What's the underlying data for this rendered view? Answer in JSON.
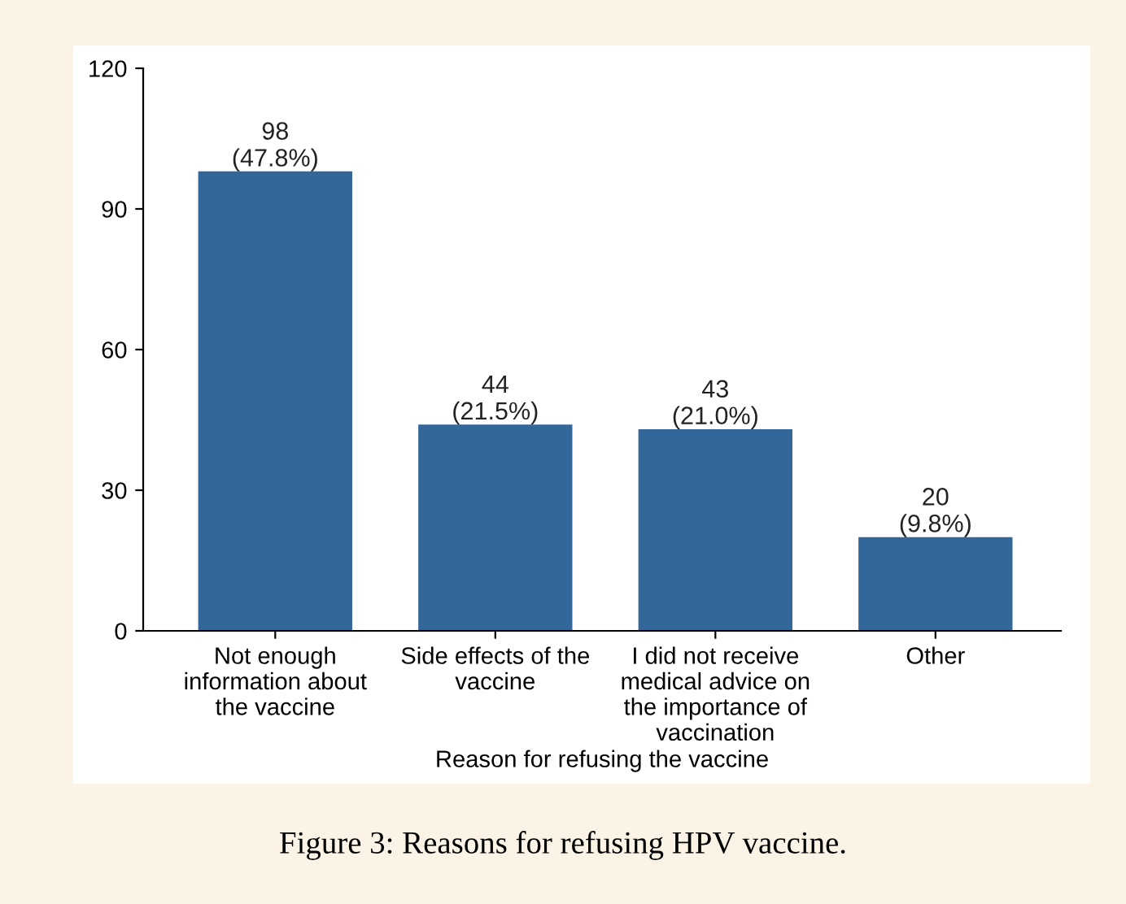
{
  "chart_data": {
    "type": "bar",
    "xlabel": "Reason for refusing the vaccine",
    "categories": [
      "Not enough\ninformation about\nthe vaccine",
      "Side effects of the\nvaccine",
      "I did not receive\nmedical advice on\nthe importance of\nvaccination",
      "Other"
    ],
    "values": [
      98,
      44,
      43,
      20
    ],
    "value_labels": [
      "98\n(47.8%)",
      "44\n(21.5%)",
      "43\n(21.0%)",
      "20\n(9.8%)"
    ],
    "color": "#336699",
    "ylim": [
      0,
      120
    ],
    "yticks": [
      0,
      30,
      60,
      90,
      120
    ],
    "grid": false,
    "legend": false,
    "annotations": [
      "Figure 3: Reasons for refusing HPV vaccine."
    ]
  }
}
